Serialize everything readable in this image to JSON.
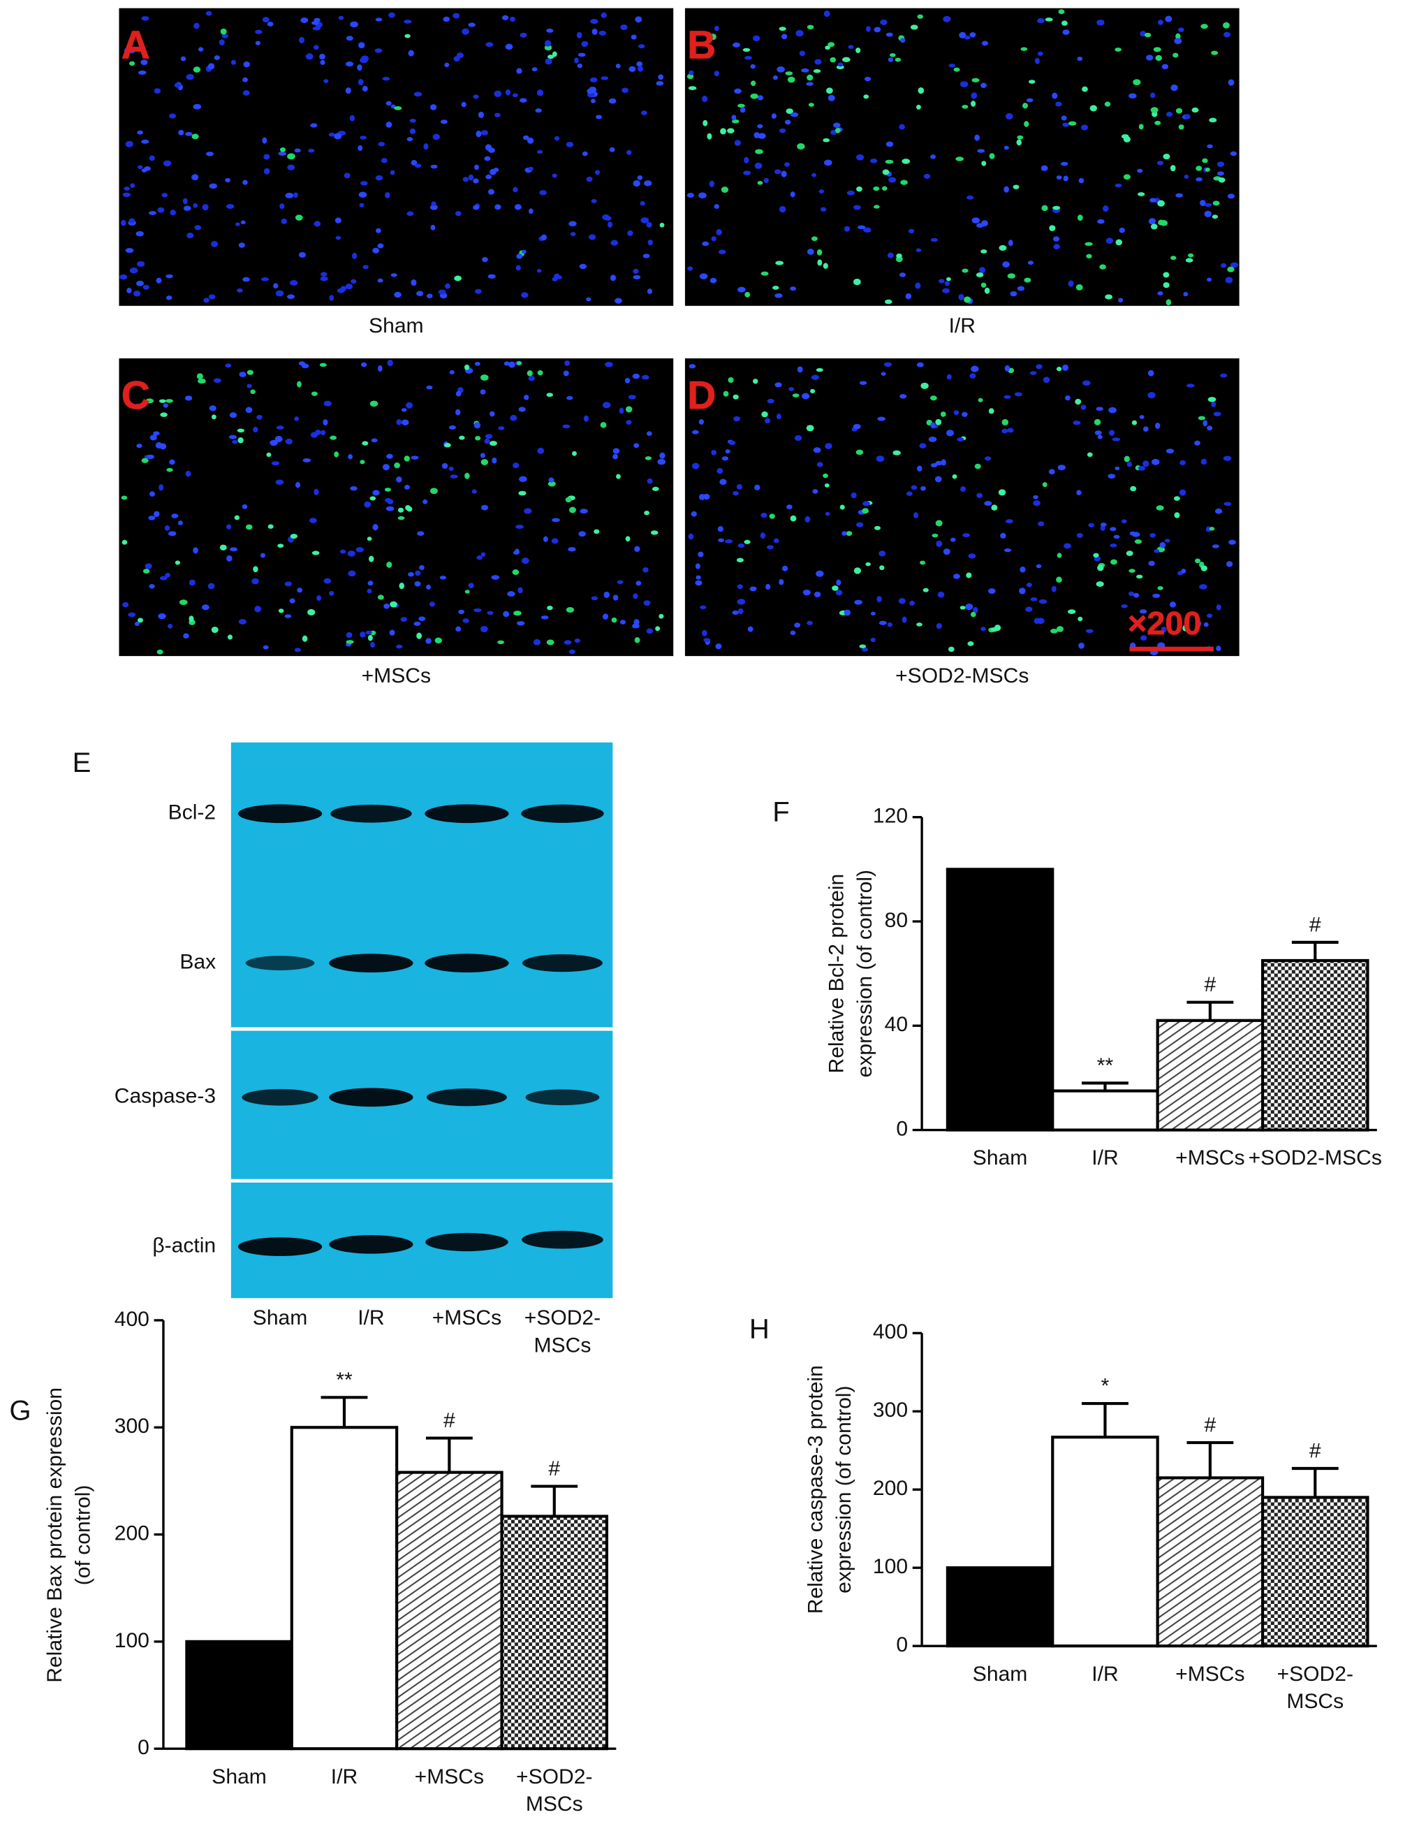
{
  "micrographs": [
    {
      "label": "A",
      "caption": "Sham"
    },
    {
      "label": "B",
      "caption": "I/R"
    },
    {
      "label": "C",
      "caption": "+MSCs"
    },
    {
      "label": "D",
      "caption": "+SOD2-MSCs"
    }
  ],
  "magnification": "×200",
  "western_blot": {
    "label": "E",
    "rows": [
      "Bcl-2",
      "Bax",
      "Caspase-3",
      "β-actin"
    ],
    "lanes": [
      "Sham",
      "I/R",
      "+MSCs",
      "+SOD2-\nMSCs"
    ]
  },
  "chart_data": [
    {
      "type": "bar",
      "label": "F",
      "ylabel": [
        "Relative Bcl-2 protein",
        "expression (of control)"
      ],
      "categories": [
        "Sham",
        "I/R",
        "+MSCs",
        "+SOD2-MSCs"
      ],
      "values": [
        100,
        15,
        42,
        65
      ],
      "errors": [
        0,
        3,
        7,
        7
      ],
      "annotations": [
        null,
        "**",
        "#",
        "#"
      ],
      "ylim": [
        0,
        120
      ],
      "yticks": [
        0,
        40,
        80,
        120
      ]
    },
    {
      "type": "bar",
      "label": "G",
      "ylabel": [
        "Relative Bax protein expression",
        "(of control)"
      ],
      "categories": [
        "Sham",
        "I/R",
        "+MSCs",
        "+SOD2-\nMSCs"
      ],
      "values": [
        100,
        300,
        258,
        217
      ],
      "errors": [
        0,
        28,
        32,
        28
      ],
      "annotations": [
        null,
        "**",
        "#",
        "#"
      ],
      "ylim": [
        0,
        400
      ],
      "yticks": [
        0,
        100,
        200,
        300,
        400
      ]
    },
    {
      "type": "bar",
      "label": "H",
      "ylabel": [
        "Relative caspase-3 protein",
        "expression (of control)"
      ],
      "categories": [
        "Sham",
        "I/R",
        "+MSCs",
        "+SOD2-\nMSCs"
      ],
      "values": [
        100,
        267,
        215,
        190
      ],
      "errors": [
        0,
        43,
        45,
        37
      ],
      "annotations": [
        null,
        "*",
        "#",
        "#"
      ],
      "ylim": [
        0,
        400
      ],
      "yticks": [
        0,
        100,
        200,
        300,
        400
      ]
    }
  ]
}
